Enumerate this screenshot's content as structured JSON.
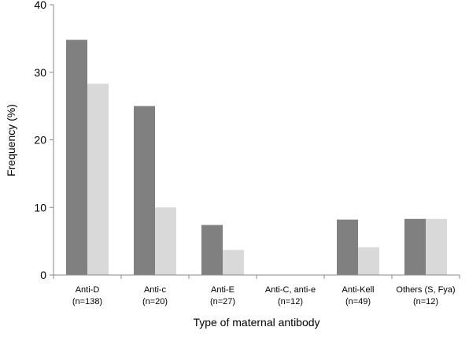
{
  "chart_data": {
    "type": "bar",
    "title": "",
    "xlabel": "Type of maternal antibody",
    "ylabel": "Frequency (%)",
    "ylim": [
      0,
      40
    ],
    "yticks": [
      0,
      10,
      20,
      30,
      40
    ],
    "grid": false,
    "legend": "none",
    "categories": [
      {
        "name": "Anti-D",
        "n": "(n=138)"
      },
      {
        "name": "Anti-c",
        "n": "(n=20)"
      },
      {
        "name": "Anti-E",
        "n": "(n=27)"
      },
      {
        "name": "Anti-C, anti-e",
        "n": "(n=12)"
      },
      {
        "name": "Anti-Kell",
        "n": "(n=49)"
      },
      {
        "name": "Others (S, Fya)",
        "n": "(n=12)"
      }
    ],
    "series": [
      {
        "color": "#808080",
        "values": [
          34.8,
          25.0,
          7.4,
          0,
          8.2,
          8.3
        ]
      },
      {
        "color": "#d9d9d9",
        "values": [
          28.3,
          10.0,
          3.7,
          0,
          4.1,
          8.3
        ]
      }
    ]
  }
}
